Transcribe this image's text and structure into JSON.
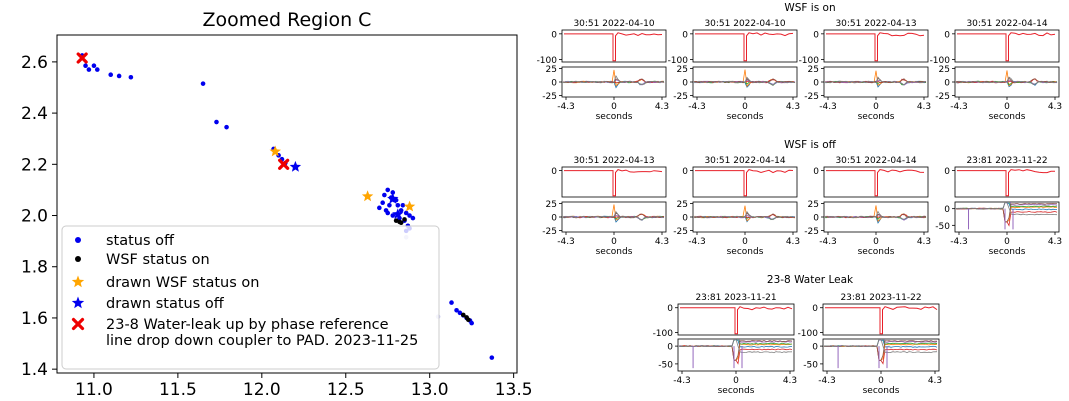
{
  "chart_data": [
    {
      "type": "scatter",
      "title": "Zoomed Region C",
      "xlabel": "",
      "ylabel": "",
      "xlim": [
        10.78,
        13.52
      ],
      "ylim": [
        1.385,
        2.705
      ],
      "xticks": [
        "11.0",
        "11.5",
        "12.0",
        "12.5",
        "13.0",
        "13.5"
      ],
      "yticks": [
        "1.4",
        "1.6",
        "1.8",
        "2.0",
        "2.2",
        "2.4",
        "2.6"
      ],
      "legend_position": "lower-left",
      "series": [
        {
          "name": "status off",
          "marker": "dot",
          "color": "#0000ee",
          "points": [
            [
              10.93,
              2.625
            ],
            [
              10.95,
              2.585
            ],
            [
              10.97,
              2.57
            ],
            [
              11.0,
              2.585
            ],
            [
              11.02,
              2.57
            ],
            [
              11.1,
              2.55
            ],
            [
              11.15,
              2.545
            ],
            [
              11.22,
              2.54
            ],
            [
              11.65,
              2.515
            ],
            [
              11.73,
              2.365
            ],
            [
              11.79,
              2.345
            ],
            [
              12.07,
              2.26
            ],
            [
              12.1,
              2.235
            ],
            [
              12.12,
              2.22
            ],
            [
              12.14,
              2.205
            ],
            [
              12.73,
              2.08
            ],
            [
              12.75,
              2.1
            ],
            [
              12.77,
              2.07
            ],
            [
              12.78,
              2.09
            ],
            [
              12.8,
              2.06
            ],
            [
              12.7,
              2.03
            ],
            [
              12.72,
              2.05
            ],
            [
              12.74,
              2.02
            ],
            [
              12.76,
              2.04
            ],
            [
              12.79,
              2.06
            ],
            [
              12.81,
              2.04
            ],
            [
              12.83,
              2.02
            ],
            [
              12.84,
              2.04
            ],
            [
              12.86,
              2.01
            ],
            [
              12.88,
              2.0
            ],
            [
              12.82,
              1.99
            ],
            [
              12.85,
              1.98
            ],
            [
              12.87,
              1.96
            ],
            [
              12.86,
              1.94
            ],
            [
              12.9,
              1.99
            ],
            [
              12.78,
              2.0
            ],
            [
              12.75,
              2.01
            ],
            [
              12.88,
              1.95
            ],
            [
              13.13,
              1.66
            ],
            [
              13.16,
              1.63
            ],
            [
              13.18,
              1.62
            ],
            [
              13.2,
              1.61
            ],
            [
              13.22,
              1.6
            ],
            [
              13.24,
              1.59
            ],
            [
              13.25,
              1.58
            ],
            [
              13.37,
              1.445
            ]
          ]
        },
        {
          "name": "WSF status on",
          "marker": "dot",
          "color": "#000000",
          "points": [
            [
              12.8,
              1.98
            ],
            [
              12.82,
              1.975
            ],
            [
              12.83,
              1.972
            ],
            [
              12.85,
              1.985
            ],
            [
              13.2,
              1.612
            ],
            [
              13.22,
              1.602
            ],
            [
              13.23,
              1.593
            ]
          ]
        },
        {
          "name": "drawn WSF status on",
          "marker": "star",
          "color": "#ffa500",
          "points": [
            [
              12.08,
              2.25
            ],
            [
              12.63,
              2.075
            ],
            [
              12.88,
              2.035
            ]
          ]
        },
        {
          "name": "drawn status off",
          "marker": "star",
          "color": "#0000ee",
          "points": [
            [
              12.2,
              2.19
            ],
            [
              12.78,
              2.065
            ],
            [
              12.81,
              2.005
            ]
          ]
        },
        {
          "name": "23-8 Water-leak up by phase reference\n line drop down coupler to PAD.  2023-11-25",
          "marker": "x",
          "color": "#ee0000",
          "points": [
            [
              10.93,
              2.615
            ],
            [
              12.13,
              2.2
            ]
          ]
        },
        {
          "name": "",
          "marker": "dot",
          "color": "#c8c8f0",
          "points": [
            [
              12.86,
              1.915
            ],
            [
              13.05,
              1.605
            ]
          ]
        }
      ]
    },
    {
      "type": "line",
      "title": "WSF is on",
      "xlabel": "seconds",
      "xticks": [
        "-4.3",
        "0",
        "4.3"
      ],
      "panels": [
        {
          "title": "30:51 2022-04-10",
          "top_yticks": [
            "0",
            "-100"
          ],
          "bottom_yticks": [
            "25",
            "0",
            "-25"
          ],
          "top_ylim": [
            -110,
            15
          ],
          "bottom_ylim": [
            -28,
            28
          ]
        },
        {
          "title": "30:51 2022-04-10",
          "top_yticks": [
            "0",
            "-100"
          ],
          "bottom_yticks": [
            "25",
            "0",
            "-25"
          ],
          "top_ylim": [
            -110,
            15
          ],
          "bottom_ylim": [
            -28,
            28
          ]
        },
        {
          "title": "30:51 2022-04-13",
          "top_yticks": [
            "0",
            "-100"
          ],
          "bottom_yticks": [
            "25",
            "0",
            "-25"
          ],
          "top_ylim": [
            -110,
            15
          ],
          "bottom_ylim": [
            -28,
            28
          ]
        },
        {
          "title": "30:51 2022-04-14",
          "top_yticks": [
            "0",
            "-100"
          ],
          "bottom_yticks": [
            "25",
            "0",
            "-25"
          ],
          "top_ylim": [
            -110,
            15
          ],
          "bottom_ylim": [
            -28,
            28
          ]
        }
      ]
    },
    {
      "type": "line",
      "title": "WSF is off",
      "xlabel": "seconds",
      "xticks": [
        "-4.3",
        "0",
        "4.3"
      ],
      "panels": [
        {
          "title": "30:51 2022-04-13",
          "top_yticks": [
            "0"
          ],
          "bottom_yticks": [
            "25",
            "0",
            "-25"
          ],
          "top_ylim": [
            -110,
            15
          ],
          "bottom_ylim": [
            -28,
            28
          ]
        },
        {
          "title": "30:51 2022-04-14",
          "top_yticks": [
            "0"
          ],
          "bottom_yticks": [
            "25",
            "0",
            "-25"
          ],
          "top_ylim": [
            -110,
            15
          ],
          "bottom_ylim": [
            -28,
            28
          ]
        },
        {
          "title": "30:51 2022-04-14",
          "top_yticks": [
            "0"
          ],
          "bottom_yticks": [
            "25",
            "0",
            "-25"
          ],
          "top_ylim": [
            -110,
            15
          ],
          "bottom_ylim": [
            -28,
            28
          ]
        },
        {
          "title": "23:81 2023-11-22",
          "top_yticks": [
            "0"
          ],
          "bottom_yticks": [
            "0",
            "-50"
          ],
          "top_ylim": [
            -110,
            15
          ],
          "bottom_ylim": [
            -70,
            20
          ]
        }
      ]
    },
    {
      "type": "line",
      "title": "23-8 Water Leak",
      "xlabel": "seconds",
      "xticks": [
        "-4.3",
        "0",
        "4.3"
      ],
      "panels": [
        {
          "title": "23:81 2023-11-21",
          "top_yticks": [
            "0",
            "-100"
          ],
          "bottom_yticks": [
            "0",
            "-50"
          ],
          "top_ylim": [
            -110,
            15
          ],
          "bottom_ylim": [
            -70,
            20
          ]
        },
        {
          "title": "23:81 2023-11-22",
          "top_yticks": [
            "0",
            "-100"
          ],
          "bottom_yticks": [
            "0",
            "-50"
          ],
          "top_ylim": [
            -110,
            15
          ],
          "bottom_ylim": [
            -70,
            20
          ]
        }
      ]
    }
  ],
  "colors": {
    "top_trace": "#e8202a",
    "bottom_traces": [
      "#1f77b4",
      "#ff7f0e",
      "#2ca02c",
      "#d62728",
      "#9467bd",
      "#8c564b",
      "#7f7f7f"
    ]
  }
}
